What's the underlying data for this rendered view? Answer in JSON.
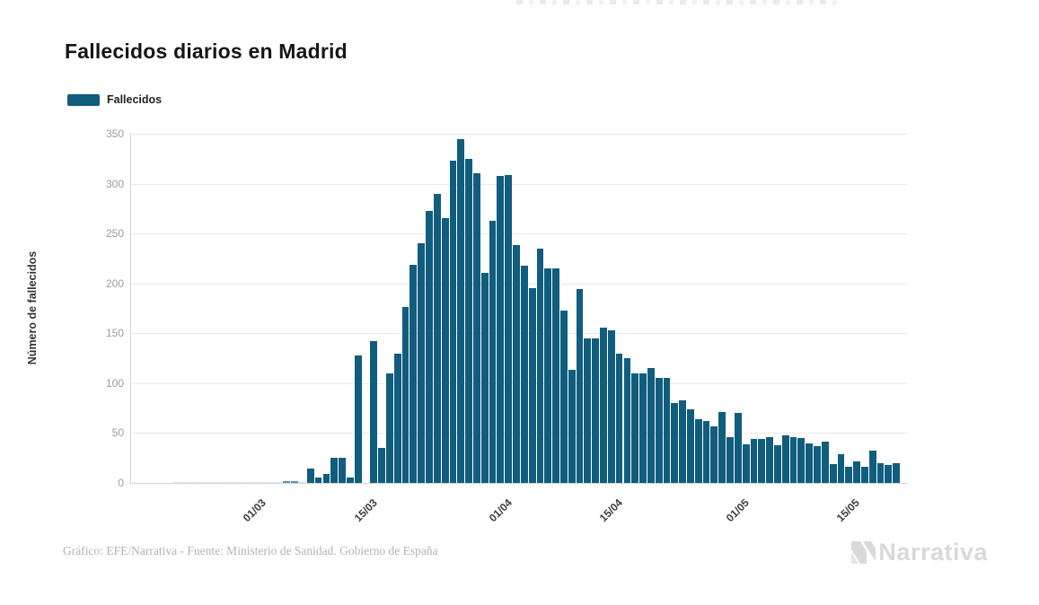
{
  "title": "Fallecidos diarios en Madrid",
  "legend": {
    "label": "Fallecidos",
    "swatch_color": "#115D7E"
  },
  "y_axis": {
    "title": "Número de fallecidos",
    "ticks": [
      0,
      50,
      100,
      150,
      200,
      250,
      300,
      350
    ]
  },
  "x_axis": {
    "labels": [
      {
        "label": "01/03",
        "index": 9
      },
      {
        "label": "15/03",
        "index": 23
      },
      {
        "label": "01/04",
        "index": 40
      },
      {
        "label": "15/04",
        "index": 54
      },
      {
        "label": "01/05",
        "index": 70
      },
      {
        "label": "15/05",
        "index": 84
      }
    ]
  },
  "chart_data": {
    "type": "bar",
    "series_name": "Fallecidos",
    "title": "Fallecidos diarios en Madrid",
    "ylabel": "Número de fallecidos",
    "xlabel": "",
    "ylim": [
      0,
      350
    ],
    "grid": true,
    "legend_position": "top-left",
    "bar_color": "#115D7E",
    "bar_color_faint": "#d9e5ec",
    "bar_color_mid": "#5E92AC",
    "dates": [
      "21/02",
      "22/02",
      "23/02",
      "24/02",
      "25/02",
      "26/02",
      "27/02",
      "28/02",
      "29/02",
      "01/03",
      "02/03",
      "03/03",
      "04/03",
      "05/03",
      "06/03",
      "07/03",
      "08/03",
      "09/03",
      "10/03",
      "11/03",
      "12/03",
      "13/03",
      "14/03",
      "15/03",
      "16/03",
      "17/03",
      "18/03",
      "19/03",
      "20/03",
      "21/03",
      "22/03",
      "23/03",
      "24/03",
      "25/03",
      "26/03",
      "27/03",
      "28/03",
      "29/03",
      "30/03",
      "31/03",
      "01/04",
      "02/04",
      "03/04",
      "04/04",
      "05/04",
      "06/04",
      "07/04",
      "08/04",
      "09/04",
      "10/04",
      "11/04",
      "12/04",
      "13/04",
      "14/04",
      "15/04",
      "16/04",
      "17/04",
      "18/04",
      "19/04",
      "20/04",
      "21/04",
      "22/04",
      "23/04",
      "24/04",
      "25/04",
      "26/04",
      "27/04",
      "28/04",
      "29/04",
      "30/04",
      "01/05",
      "02/05",
      "03/05",
      "04/05",
      "05/05",
      "06/05",
      "07/05",
      "08/05",
      "09/05",
      "10/05",
      "11/05",
      "12/05",
      "13/05",
      "14/05",
      "15/05",
      "16/05",
      "17/05",
      "18/05",
      "19/05",
      "20/05",
      "21/05",
      "22/05"
    ],
    "values": [
      1,
      1,
      1,
      1,
      1,
      1,
      1,
      1,
      1,
      1,
      1,
      1,
      1,
      1,
      2,
      2,
      1,
      14,
      5,
      9,
      25,
      25,
      5,
      128,
      0,
      142,
      35,
      110,
      130,
      176,
      219,
      240,
      273,
      290,
      265,
      323,
      345,
      325,
      310,
      211,
      263,
      308,
      309,
      238,
      218,
      195,
      235,
      215,
      215,
      173,
      113,
      194,
      145,
      145,
      156,
      153,
      130,
      125,
      110,
      110,
      115,
      105,
      105,
      80,
      83,
      74,
      64,
      62,
      57,
      71,
      46,
      70,
      39,
      44,
      44,
      46,
      38,
      48,
      46,
      45,
      40,
      37,
      41,
      19,
      29,
      16,
      22,
      16,
      32,
      20,
      18,
      20
    ]
  },
  "footer": {
    "credit": "Gráfico: EFE/Narrativa - Fuente: Ministerio de Sanidad. Gobierno de España",
    "logo_text": "Narrativa"
  }
}
